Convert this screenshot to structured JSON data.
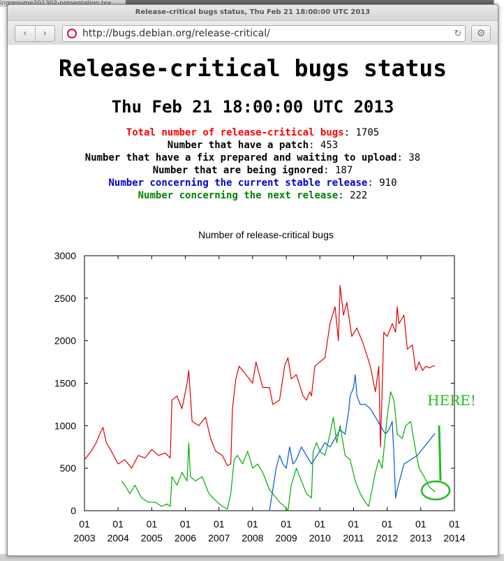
{
  "desktop": {
    "background_tab_title": "ingresume201302-presentation.tex"
  },
  "window": {
    "title": "Release-critical bugs status, Thu Feb 21 18:00:00 UTC 2013"
  },
  "toolbar": {
    "back_glyph": "‹",
    "forward_glyph": "›",
    "url": "http://bugs.debian.org/release-critical/",
    "reload_glyph": "↻",
    "menu_glyph": "⚙",
    "site_icon": "debian-swirl-icon"
  },
  "page": {
    "heading": "Release-critical bugs status",
    "date": "Thu Feb 21 18:00:00 UTC 2013",
    "stats": [
      {
        "label": "Total number of release-critical bugs",
        "value": "1705",
        "color": "#ff0000"
      },
      {
        "label": "Number that have a patch",
        "value": "453",
        "color": "#000000"
      },
      {
        "label": "Number that have a fix prepared and waiting to upload",
        "value": "38",
        "color": "#000000"
      },
      {
        "label": "Number that are being ignored",
        "value": "187",
        "color": "#000000"
      },
      {
        "label": "Number concerning the current stable release",
        "value": "910",
        "color": "#0000cc"
      },
      {
        "label": "Number concerning the next release",
        "value": "222",
        "color": "#008000"
      }
    ],
    "annotation": "HERE!",
    "annotation_color": "#22bb22"
  },
  "chart_data": {
    "type": "line",
    "title": "Number of release-critical bugs",
    "xlabel": "",
    "ylabel": "",
    "xlim": [
      2003.0,
      2014.0
    ],
    "ylim": [
      0,
      3000
    ],
    "yticks": [
      0,
      500,
      1000,
      1500,
      2000,
      2500,
      3000
    ],
    "xticks": [
      {
        "value": 2003,
        "line1": "01",
        "line2": "2003"
      },
      {
        "value": 2004,
        "line1": "01",
        "line2": "2004"
      },
      {
        "value": 2005,
        "line1": "01",
        "line2": "2005"
      },
      {
        "value": 2006,
        "line1": "01",
        "line2": "2006"
      },
      {
        "value": 2007,
        "line1": "01",
        "line2": "2007"
      },
      {
        "value": 2008,
        "line1": "01",
        "line2": "2008"
      },
      {
        "value": 2009,
        "line1": "01",
        "line2": "2009"
      },
      {
        "value": 2010,
        "line1": "01",
        "line2": "2010"
      },
      {
        "value": 2011,
        "line1": "01",
        "line2": "2011"
      },
      {
        "value": 2012,
        "line1": "01",
        "line2": "2012"
      },
      {
        "value": 2013,
        "line1": "01",
        "line2": "2013"
      },
      {
        "value": 2014,
        "line1": "01",
        "line2": "2014"
      }
    ],
    "grid": false,
    "legend": "none",
    "series": [
      {
        "color": "#dd0000",
        "points": [
          [
            2003.0,
            600
          ],
          [
            2003.2,
            700
          ],
          [
            2003.35,
            800
          ],
          [
            2003.45,
            900
          ],
          [
            2003.55,
            980
          ],
          [
            2003.65,
            800
          ],
          [
            2003.8,
            700
          ],
          [
            2004.0,
            550
          ],
          [
            2004.2,
            600
          ],
          [
            2004.4,
            500
          ],
          [
            2004.6,
            650
          ],
          [
            2004.8,
            620
          ],
          [
            2005.0,
            720
          ],
          [
            2005.2,
            650
          ],
          [
            2005.4,
            680
          ],
          [
            2005.55,
            620
          ],
          [
            2005.6,
            1300
          ],
          [
            2005.75,
            1350
          ],
          [
            2005.9,
            1200
          ],
          [
            2006.05,
            1500
          ],
          [
            2006.1,
            1650
          ],
          [
            2006.2,
            1050
          ],
          [
            2006.4,
            1000
          ],
          [
            2006.6,
            1100
          ],
          [
            2006.75,
            850
          ],
          [
            2006.9,
            700
          ],
          [
            2007.1,
            650
          ],
          [
            2007.25,
            530
          ],
          [
            2007.35,
            550
          ],
          [
            2007.4,
            1200
          ],
          [
            2007.5,
            1550
          ],
          [
            2007.6,
            1700
          ],
          [
            2007.8,
            1600
          ],
          [
            2008.0,
            1500
          ],
          [
            2008.1,
            1750
          ],
          [
            2008.3,
            1450
          ],
          [
            2008.5,
            1450
          ],
          [
            2008.6,
            1250
          ],
          [
            2008.8,
            1300
          ],
          [
            2008.95,
            1700
          ],
          [
            2009.05,
            1800
          ],
          [
            2009.15,
            1550
          ],
          [
            2009.3,
            1600
          ],
          [
            2009.5,
            1350
          ],
          [
            2009.6,
            1300
          ],
          [
            2009.7,
            1400
          ],
          [
            2009.75,
            1350
          ],
          [
            2009.85,
            1700
          ],
          [
            2010.0,
            1750
          ],
          [
            2010.15,
            1800
          ],
          [
            2010.3,
            2200
          ],
          [
            2010.45,
            2400
          ],
          [
            2010.55,
            2000
          ],
          [
            2010.6,
            2650
          ],
          [
            2010.7,
            2300
          ],
          [
            2010.8,
            2450
          ],
          [
            2010.95,
            2050
          ],
          [
            2011.1,
            2150
          ],
          [
            2011.3,
            1950
          ],
          [
            2011.5,
            1700
          ],
          [
            2011.65,
            1400
          ],
          [
            2011.75,
            1700
          ],
          [
            2011.8,
            750
          ],
          [
            2011.9,
            2100
          ],
          [
            2012.0,
            2050
          ],
          [
            2012.15,
            2200
          ],
          [
            2012.25,
            2100
          ],
          [
            2012.3,
            2400
          ],
          [
            2012.35,
            2200
          ],
          [
            2012.5,
            2300
          ],
          [
            2012.6,
            1900
          ],
          [
            2012.75,
            1950
          ],
          [
            2012.85,
            1650
          ],
          [
            2012.95,
            1750
          ],
          [
            2013.05,
            1650
          ],
          [
            2013.15,
            1700
          ],
          [
            2013.25,
            1680
          ],
          [
            2013.35,
            1700
          ],
          [
            2013.42,
            1705
          ]
        ]
      },
      {
        "color": "#0055dd",
        "points": [
          [
            2008.5,
            0
          ],
          [
            2008.6,
            250
          ],
          [
            2008.7,
            500
          ],
          [
            2008.8,
            650
          ],
          [
            2008.9,
            550
          ],
          [
            2009.0,
            500
          ],
          [
            2009.1,
            750
          ],
          [
            2009.2,
            550
          ],
          [
            2009.3,
            600
          ],
          [
            2009.45,
            750
          ],
          [
            2009.6,
            650
          ],
          [
            2009.75,
            550
          ],
          [
            2010.0,
            700
          ],
          [
            2010.15,
            800
          ],
          [
            2010.3,
            750
          ],
          [
            2010.45,
            850
          ],
          [
            2010.6,
            950
          ],
          [
            2010.75,
            900
          ],
          [
            2010.85,
            1150
          ],
          [
            2010.9,
            1350
          ],
          [
            2011.0,
            1450
          ],
          [
            2011.05,
            1600
          ],
          [
            2011.1,
            1350
          ],
          [
            2011.2,
            1250
          ],
          [
            2011.35,
            1250
          ],
          [
            2011.5,
            1200
          ],
          [
            2011.65,
            1100
          ],
          [
            2011.8,
            1000
          ],
          [
            2011.95,
            900
          ],
          [
            2012.05,
            950
          ],
          [
            2012.1,
            1000
          ],
          [
            2012.15,
            1050
          ],
          [
            2012.2,
            650
          ],
          [
            2012.25,
            150
          ],
          [
            2012.3,
            250
          ],
          [
            2012.4,
            400
          ],
          [
            2012.5,
            550
          ],
          [
            2012.7,
            600
          ],
          [
            2012.9,
            650
          ],
          [
            2013.1,
            750
          ],
          [
            2013.3,
            850
          ],
          [
            2013.42,
            910
          ]
        ]
      },
      {
        "color": "#00aa00",
        "points": [
          [
            2004.1,
            350
          ],
          [
            2004.2,
            300
          ],
          [
            2004.35,
            200
          ],
          [
            2004.5,
            300
          ],
          [
            2004.7,
            150
          ],
          [
            2004.9,
            100
          ],
          [
            2005.1,
            100
          ],
          [
            2005.3,
            50
          ],
          [
            2005.45,
            80
          ],
          [
            2005.55,
            50
          ],
          [
            2005.6,
            400
          ],
          [
            2005.75,
            300
          ],
          [
            2005.9,
            450
          ],
          [
            2006.05,
            350
          ],
          [
            2006.1,
            800
          ],
          [
            2006.15,
            400
          ],
          [
            2006.3,
            350
          ],
          [
            2006.5,
            400
          ],
          [
            2006.7,
            200
          ],
          [
            2006.9,
            120
          ],
          [
            2007.1,
            50
          ],
          [
            2007.25,
            20
          ],
          [
            2007.35,
            200
          ],
          [
            2007.45,
            600
          ],
          [
            2007.55,
            650
          ],
          [
            2007.7,
            550
          ],
          [
            2007.85,
            700
          ],
          [
            2008.0,
            500
          ],
          [
            2008.15,
            550
          ],
          [
            2008.3,
            450
          ],
          [
            2008.5,
            250
          ],
          [
            2008.6,
            200
          ],
          [
            2008.8,
            100
          ],
          [
            2008.95,
            50
          ],
          [
            2009.05,
            0
          ],
          [
            2009.15,
            300
          ],
          [
            2009.3,
            500
          ],
          [
            2009.45,
            350
          ],
          [
            2009.6,
            200
          ],
          [
            2009.75,
            150
          ],
          [
            2009.8,
            700
          ],
          [
            2009.9,
            800
          ],
          [
            2010.0,
            700
          ],
          [
            2010.15,
            650
          ],
          [
            2010.3,
            900
          ],
          [
            2010.4,
            1100
          ],
          [
            2010.5,
            800
          ],
          [
            2010.6,
            1000
          ],
          [
            2010.75,
            650
          ],
          [
            2010.9,
            600
          ],
          [
            2011.05,
            350
          ],
          [
            2011.2,
            200
          ],
          [
            2011.35,
            100
          ],
          [
            2011.45,
            50
          ],
          [
            2011.55,
            250
          ],
          [
            2011.65,
            450
          ],
          [
            2011.75,
            600
          ],
          [
            2011.85,
            500
          ],
          [
            2012.0,
            1100
          ],
          [
            2012.1,
            1400
          ],
          [
            2012.2,
            1300
          ],
          [
            2012.3,
            900
          ],
          [
            2012.45,
            850
          ],
          [
            2012.55,
            1000
          ],
          [
            2012.7,
            1050
          ],
          [
            2012.85,
            700
          ],
          [
            2012.95,
            500
          ],
          [
            2013.1,
            400
          ],
          [
            2013.25,
            280
          ],
          [
            2013.42,
            222
          ]
        ]
      }
    ]
  }
}
